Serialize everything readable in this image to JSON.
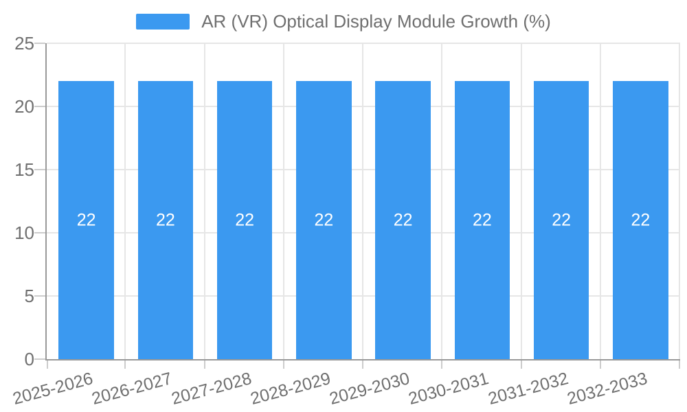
{
  "legend": {
    "label": "AR (VR) Optical Display Module Growth (%)"
  },
  "chart_data": {
    "type": "bar",
    "title": "AR (VR) Optical Display Module Growth (%)",
    "series_name": "AR (VR) Optical Display Module Growth (%)",
    "categories": [
      "2025-2026",
      "2026-2027",
      "2027-2028",
      "2028-2029",
      "2029-2030",
      "2030-2031",
      "2031-2032",
      "2032-2033"
    ],
    "values": [
      22,
      22,
      22,
      22,
      22,
      22,
      22,
      22
    ],
    "value_labels": [
      "22",
      "22",
      "22",
      "22",
      "22",
      "22",
      "22",
      "22"
    ],
    "xlabel": "",
    "ylabel": "",
    "ylim": [
      0,
      25
    ],
    "yticks": [
      0,
      5,
      10,
      15,
      20,
      25
    ],
    "grid": true,
    "legend_position": "top",
    "x_label_rotation_deg": -15
  },
  "colors": {
    "bar": "#3b99f0",
    "bar_value_text": "#ffffff",
    "axis_line": "#999999",
    "gridline": "#e6e6e6",
    "tick": "#cccccc",
    "text": "#6f6f6f",
    "background": "#ffffff"
  }
}
